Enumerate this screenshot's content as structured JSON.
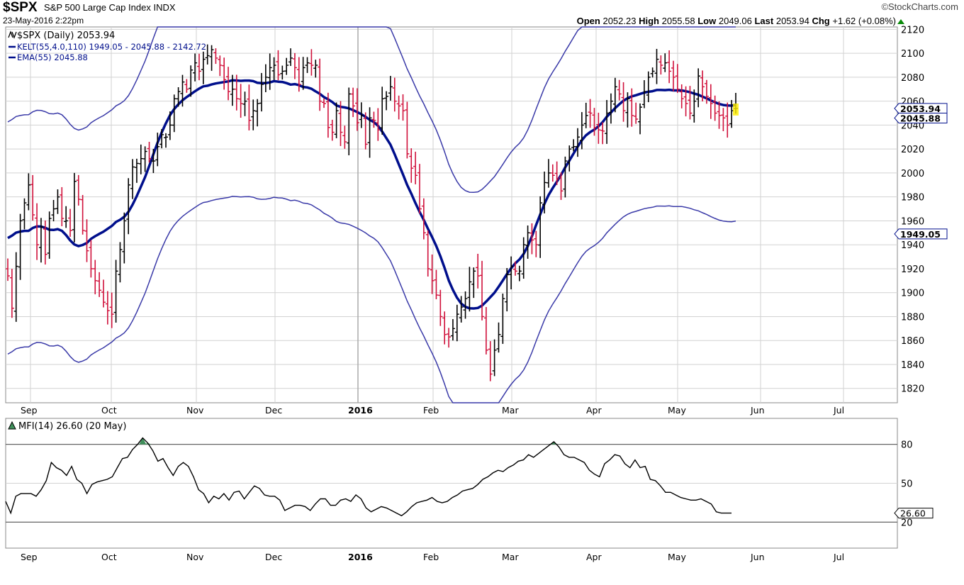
{
  "header": {
    "symbol": "$SPX",
    "name": "S&P 500 Large Cap Index",
    "exchange": "INDX",
    "date": "23-May-2016 2:22pm",
    "brand": "©StockCharts.com",
    "open_label": "Open",
    "open": "2052.23",
    "high_label": "High",
    "high": "2055.58",
    "low_label": "Low",
    "low": "2049.06",
    "last_label": "Last",
    "last": "2053.94",
    "chg_label": "Chg",
    "chg": "+1.62 (+0.08%)"
  },
  "legend": {
    "price": "$SPX (Daily) 2053.94",
    "kelt": "KELT(55,4.0,110) 1949.05 - 2045.88 - 2142.72",
    "ema": "EMA(55) 2045.88"
  },
  "colors": {
    "up": "#000000",
    "down": "#d0103a",
    "ema": "#000f8c",
    "kelt": "#3a3aa8",
    "mfi": "#000000",
    "mfi_peak": "#3f8f5a",
    "grid": "#d2d2d2",
    "highlight": "#ffee00"
  },
  "chart_data": [
    {
      "type": "bar",
      "title": "$SPX (Daily) 2053.94",
      "x_axis_labels": [
        "Sep",
        "Oct",
        "Nov",
        "Dec",
        "2016",
        "Feb",
        "Mar",
        "Apr",
        "May",
        "Jun",
        "Jul"
      ],
      "ylim": [
        1808,
        2122
      ],
      "yticks": [
        1820,
        1840,
        1860,
        1880,
        1900,
        1920,
        1940,
        1960,
        1980,
        2000,
        2020,
        2040,
        2060,
        2080,
        2100,
        2120
      ],
      "grid": true,
      "value_tags": {
        "last": "2053.94",
        "ema": "2045.88",
        "kelt_lower": "1949.05"
      },
      "ohlc_daily_close_approx": [
        1914,
        1887,
        1922,
        1960,
        1975,
        1990,
        1965,
        1940,
        1955,
        1932,
        1962,
        1970,
        1980,
        1962,
        1960,
        1952,
        1993,
        1978,
        1952,
        1935,
        1920,
        1910,
        1902,
        1892,
        1885,
        1882,
        1918,
        1936,
        1960,
        1990,
        2005,
        2008,
        2012,
        2018,
        2012,
        2010,
        2022,
        2032,
        2030,
        2040,
        2062,
        2068,
        2076,
        2070,
        2086,
        2092,
        2085,
        2095,
        2098,
        2103,
        2096,
        2090,
        2078,
        2068,
        2070,
        2062,
        2058,
        2060,
        2044,
        2052,
        2058,
        2074,
        2080,
        2088,
        2090,
        2082,
        2085,
        2090,
        2096,
        2088,
        2074,
        2088,
        2092,
        2090,
        2090,
        2060,
        2058,
        2038,
        2034,
        2052,
        2034,
        2026,
        2066,
        2056,
        2042,
        2048,
        2024,
        2046,
        2044,
        2036,
        2062,
        2064,
        2072,
        2060,
        2056,
        2052,
        2016,
        2004,
        1998,
        1970,
        1950,
        1920,
        1910,
        1898,
        1880,
        1865,
        1863,
        1870,
        1882,
        1888,
        1895,
        1909,
        1918,
        1914,
        1880,
        1852,
        1832,
        1852,
        1865,
        1895,
        1915,
        1922,
        1918,
        1918,
        1940,
        1950,
        1944,
        1940,
        1975,
        1992,
        2000,
        1998,
        1995,
        1985,
        2010,
        2020,
        2022,
        2030,
        2040,
        2048,
        2050,
        2038,
        2036,
        2035,
        2050,
        2060,
        2072,
        2066,
        2052,
        2062,
        2048,
        2045,
        2055,
        2068,
        2080,
        2085,
        2095,
        2090,
        2092,
        2085,
        2080,
        2070,
        2062,
        2058,
        2050,
        2060,
        2081,
        2072,
        2064,
        2058,
        2050,
        2048,
        2046,
        2040,
        2052,
        2054
      ]
    },
    {
      "type": "line",
      "title": "MFI(14) 26.60 (20 May)",
      "ylim": [
        0,
        100
      ],
      "yticks": [
        20,
        50,
        80
      ],
      "overbought": 80,
      "oversold": 20,
      "value_tag": "26.60",
      "values": [
        36,
        27,
        40,
        42,
        42,
        42,
        40,
        45,
        52,
        66,
        62,
        60,
        56,
        63,
        53,
        50,
        42,
        49,
        51,
        52,
        53,
        55,
        62,
        69,
        70,
        76,
        80,
        85,
        81,
        75,
        67,
        69,
        62,
        56,
        63,
        66,
        63,
        55,
        45,
        42,
        35,
        40,
        38,
        42,
        37,
        43,
        44,
        38,
        43,
        48,
        46,
        41,
        40,
        40,
        37,
        29,
        31,
        33,
        33,
        32,
        29,
        34,
        38,
        38,
        33,
        33,
        37,
        38,
        36,
        41,
        38,
        31,
        28,
        30,
        32,
        31,
        29,
        27,
        25,
        28,
        32,
        35,
        36,
        37,
        39,
        36,
        35,
        36,
        39,
        41,
        44,
        45,
        46,
        49,
        53,
        55,
        58,
        60,
        59,
        62,
        64,
        67,
        68,
        72,
        70,
        73,
        76,
        79,
        82,
        78,
        72,
        70,
        70,
        68,
        66,
        60,
        57,
        55,
        65,
        68,
        72,
        71,
        65,
        62,
        68,
        62,
        63,
        53,
        52,
        48,
        43,
        43,
        41,
        39,
        38,
        37,
        37,
        38,
        36,
        34,
        28,
        27,
        27,
        27
      ]
    }
  ]
}
